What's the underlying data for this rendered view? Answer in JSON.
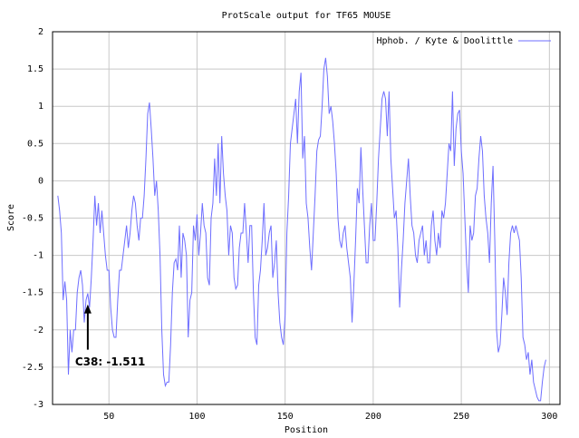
{
  "chart_data": {
    "type": "line",
    "title": "ProtScale output for TF65 MOUSE",
    "x_label": "Position",
    "y_label": "Score",
    "xlim": [
      18,
      306
    ],
    "ylim": [
      -3,
      2
    ],
    "xticks": [
      50,
      100,
      150,
      200,
      250,
      300
    ],
    "yticks": [
      2,
      1.5,
      1,
      0.5,
      0,
      -0.5,
      -1,
      -1.5,
      -2,
      -2.5,
      -3
    ],
    "grid": true,
    "legend": "top-right",
    "annotation": {
      "text": "C38: -1.511",
      "x": 38,
      "y": -1.511
    },
    "series": [
      {
        "name": "Hphob. / Kyte & Doolittle",
        "color": "#6e6eff",
        "x": [
          21,
          22,
          23,
          24,
          25,
          26,
          27,
          28,
          29,
          30,
          31,
          32,
          33,
          34,
          35,
          36,
          37,
          38,
          39,
          40,
          41,
          42,
          43,
          44,
          45,
          46,
          47,
          48,
          49,
          50,
          51,
          52,
          53,
          54,
          55,
          56,
          57,
          58,
          59,
          60,
          61,
          62,
          63,
          64,
          65,
          66,
          67,
          68,
          69,
          70,
          71,
          72,
          73,
          74,
          75,
          76,
          77,
          78,
          79,
          80,
          81,
          82,
          83,
          84,
          85,
          86,
          87,
          88,
          89,
          90,
          91,
          92,
          93,
          94,
          95,
          96,
          97,
          98,
          99,
          100,
          101,
          102,
          103,
          104,
          105,
          106,
          107,
          108,
          109,
          110,
          111,
          112,
          113,
          114,
          115,
          116,
          117,
          118,
          119,
          120,
          121,
          122,
          123,
          124,
          125,
          126,
          127,
          128,
          129,
          130,
          131,
          132,
          133,
          134,
          135,
          136,
          137,
          138,
          139,
          140,
          141,
          142,
          143,
          144,
          145,
          146,
          147,
          148,
          149,
          150,
          151,
          152,
          153,
          154,
          155,
          156,
          157,
          158,
          159,
          160,
          161,
          162,
          163,
          164,
          165,
          166,
          167,
          168,
          169,
          170,
          171,
          172,
          173,
          174,
          175,
          176,
          177,
          178,
          179,
          180,
          181,
          182,
          183,
          184,
          185,
          186,
          187,
          188,
          189,
          190,
          191,
          192,
          193,
          194,
          195,
          196,
          197,
          198,
          199,
          200,
          201,
          202,
          203,
          204,
          205,
          206,
          207,
          208,
          209,
          210,
          211,
          212,
          213,
          214,
          215,
          216,
          217,
          218,
          219,
          220,
          221,
          222,
          223,
          224,
          225,
          226,
          227,
          228,
          229,
          230,
          231,
          232,
          233,
          234,
          235,
          236,
          237,
          238,
          239,
          240,
          241,
          242,
          243,
          244,
          245,
          246,
          247,
          248,
          249,
          250,
          251,
          252,
          253,
          254,
          255,
          256,
          257,
          258,
          259,
          260,
          261,
          262,
          263,
          264,
          265,
          266,
          267,
          268,
          269,
          270,
          271,
          272,
          273,
          274,
          275,
          276,
          277,
          278,
          279,
          280,
          281,
          282,
          283,
          284,
          285,
          286,
          287,
          288,
          289,
          290,
          291,
          292,
          293,
          294,
          295,
          296,
          297,
          298
        ],
        "values": [
          -0.2,
          -0.4,
          -0.7,
          -1.6,
          -1.35,
          -1.6,
          -2.6,
          -2.0,
          -2.3,
          -2.0,
          -2.0,
          -1.5,
          -1.3,
          -1.2,
          -1.4,
          -1.9,
          -1.6,
          -1.511,
          -1.7,
          -1.3,
          -0.8,
          -0.2,
          -0.6,
          -0.3,
          -0.7,
          -0.4,
          -0.7,
          -1.0,
          -1.2,
          -1.2,
          -1.7,
          -2.0,
          -2.1,
          -2.1,
          -1.6,
          -1.2,
          -1.2,
          -1.0,
          -0.8,
          -0.6,
          -0.9,
          -0.7,
          -0.4,
          -0.2,
          -0.3,
          -0.6,
          -0.8,
          -0.5,
          -0.5,
          -0.2,
          0.3,
          0.9,
          1.05,
          0.7,
          0.3,
          -0.2,
          0.0,
          -0.4,
          -1.0,
          -2.0,
          -2.6,
          -2.75,
          -2.7,
          -2.7,
          -2.2,
          -1.5,
          -1.1,
          -1.05,
          -1.2,
          -0.6,
          -1.3,
          -0.7,
          -0.8,
          -1.0,
          -2.1,
          -1.6,
          -1.5,
          -0.6,
          -0.8,
          -0.45,
          -1.0,
          -0.7,
          -0.3,
          -0.6,
          -0.7,
          -1.3,
          -1.4,
          -0.5,
          -0.3,
          0.3,
          -0.2,
          0.5,
          -0.3,
          0.6,
          0.1,
          -0.2,
          -0.4,
          -1.0,
          -0.6,
          -0.7,
          -1.3,
          -1.45,
          -1.4,
          -0.9,
          -0.7,
          -0.7,
          -0.3,
          -0.7,
          -1.1,
          -0.6,
          -0.6,
          -1.5,
          -2.1,
          -2.2,
          -1.4,
          -1.2,
          -0.8,
          -0.3,
          -1.0,
          -0.9,
          -0.7,
          -0.6,
          -1.3,
          -1.1,
          -0.8,
          -1.5,
          -1.9,
          -2.1,
          -2.2,
          -1.8,
          -0.7,
          -0.2,
          0.5,
          0.7,
          0.9,
          1.1,
          0.5,
          1.2,
          1.45,
          0.3,
          0.6,
          -0.3,
          -0.5,
          -0.9,
          -1.2,
          -0.7,
          -0.2,
          0.4,
          0.55,
          0.6,
          1.0,
          1.5,
          1.65,
          1.4,
          0.9,
          1.0,
          0.8,
          0.5,
          0.1,
          -0.5,
          -0.8,
          -0.9,
          -0.7,
          -0.6,
          -0.9,
          -1.1,
          -1.3,
          -1.9,
          -1.4,
          -0.8,
          -0.1,
          -0.3,
          0.45,
          -0.1,
          -0.6,
          -1.1,
          -1.1,
          -0.6,
          -0.3,
          -0.8,
          -0.8,
          -0.3,
          0.3,
          0.7,
          1.1,
          1.2,
          1.1,
          0.6,
          1.2,
          0.3,
          -0.1,
          -0.5,
          -0.4,
          -0.9,
          -1.7,
          -1.2,
          -0.8,
          -0.3,
          0.0,
          0.3,
          -0.2,
          -0.6,
          -0.7,
          -1.0,
          -1.1,
          -0.8,
          -0.7,
          -0.6,
          -1.0,
          -0.8,
          -1.1,
          -1.1,
          -0.6,
          -0.4,
          -0.8,
          -1.0,
          -0.7,
          -0.9,
          -0.4,
          -0.5,
          -0.3,
          0.1,
          0.5,
          0.4,
          1.2,
          0.2,
          0.7,
          0.9,
          0.95,
          0.4,
          0.1,
          -0.5,
          -1.1,
          -1.5,
          -0.6,
          -0.8,
          -0.7,
          -0.2,
          -0.1,
          0.3,
          0.6,
          0.4,
          -0.2,
          -0.5,
          -0.7,
          -1.1,
          -0.3,
          0.2,
          -0.8,
          -2.0,
          -2.3,
          -2.2,
          -1.8,
          -1.3,
          -1.5,
          -1.8,
          -1.1,
          -0.7,
          -0.6,
          -0.7,
          -0.6,
          -0.7,
          -0.8,
          -1.3,
          -2.1,
          -2.2,
          -2.4,
          -2.3,
          -2.6,
          -2.4,
          -2.7,
          -2.8,
          -2.9,
          -2.95,
          -2.95,
          -2.7,
          -2.5,
          -2.4
        ]
      }
    ]
  }
}
